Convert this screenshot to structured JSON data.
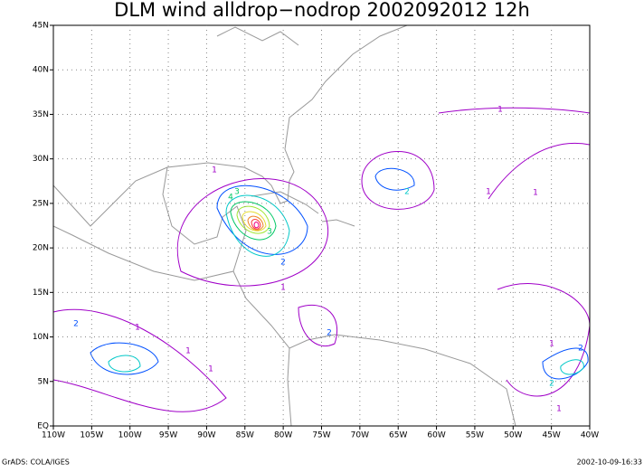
{
  "map": {
    "title": "DLM wind alldrop−nodrop 2002092012 12h",
    "lon_ticks": [
      {
        "value": -110,
        "label": "110W"
      },
      {
        "value": -105,
        "label": "105W"
      },
      {
        "value": -100,
        "label": "100W"
      },
      {
        "value": -95,
        "label": "95W"
      },
      {
        "value": -90,
        "label": "90W"
      },
      {
        "value": -85,
        "label": "85W"
      },
      {
        "value": -80,
        "label": "80W"
      },
      {
        "value": -75,
        "label": "75W"
      },
      {
        "value": -70,
        "label": "70W"
      },
      {
        "value": -65,
        "label": "65W"
      },
      {
        "value": -60,
        "label": "60W"
      },
      {
        "value": -55,
        "label": "55W"
      },
      {
        "value": -50,
        "label": "50W"
      },
      {
        "value": -45,
        "label": "45W"
      },
      {
        "value": -40,
        "label": "40W"
      }
    ],
    "lat_ticks": [
      {
        "value": 0,
        "label": "EQ"
      },
      {
        "value": 5,
        "label": "5N"
      },
      {
        "value": 10,
        "label": "10N"
      },
      {
        "value": 15,
        "label": "15N"
      },
      {
        "value": 20,
        "label": "20N"
      },
      {
        "value": 25,
        "label": "25N"
      },
      {
        "value": 30,
        "label": "30N"
      },
      {
        "value": 35,
        "label": "35N"
      },
      {
        "value": 40,
        "label": "40N"
      },
      {
        "value": 45,
        "label": "45N"
      }
    ],
    "lonlim": [
      -110,
      -40
    ],
    "latlim": [
      0,
      45
    ],
    "contour_labels": [
      "1",
      "1",
      "1",
      "1",
      "1",
      "2",
      "3",
      "4",
      "2",
      "2",
      "1",
      "2",
      "1",
      "2",
      "3",
      "1",
      "1",
      "2",
      "1"
    ],
    "footer_left": "GrADS: COLA/IGES",
    "footer_right": "2002-10-09-16:33"
  }
}
